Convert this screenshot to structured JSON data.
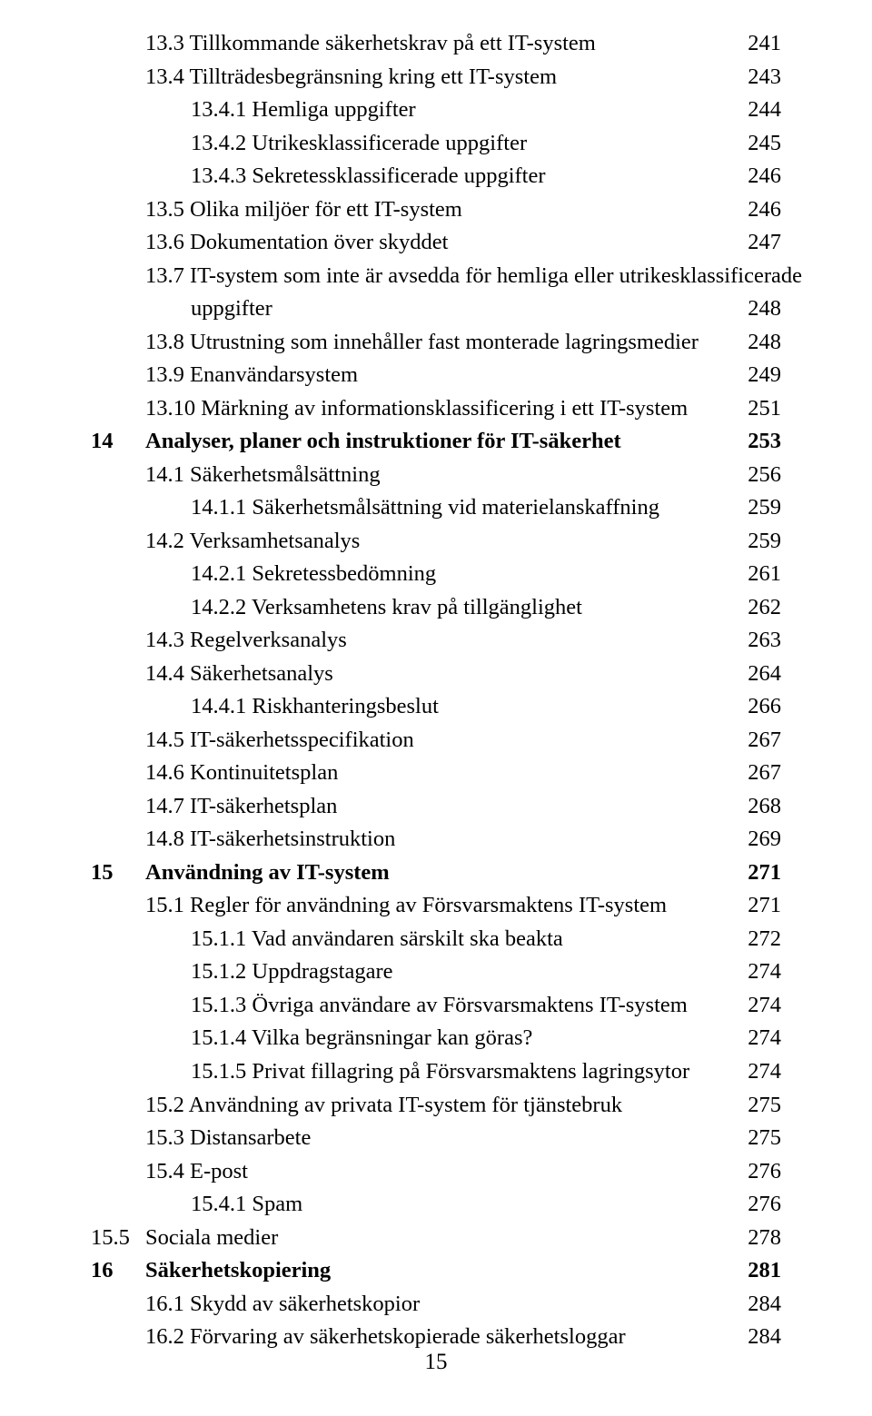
{
  "page_number": "15",
  "toc_entries": [
    {
      "indent": 1,
      "bold": false,
      "label": "13.3 Tillkommande säkerhetskrav på ett IT-system",
      "page": "241"
    },
    {
      "indent": 1,
      "bold": false,
      "label": "13.4 Tillträdesbegränsning kring ett IT-system",
      "page": "243"
    },
    {
      "indent": 2,
      "bold": false,
      "label": "13.4.1 Hemliga uppgifter",
      "page": "244"
    },
    {
      "indent": 2,
      "bold": false,
      "label": "13.4.2 Utrikesklassificerade uppgifter",
      "page": "245"
    },
    {
      "indent": 2,
      "bold": false,
      "label": "13.4.3 Sekretessklassificerade uppgifter",
      "page": "246"
    },
    {
      "indent": 1,
      "bold": false,
      "label": "13.5 Olika miljöer för ett IT-system",
      "page": "246"
    },
    {
      "indent": 1,
      "bold": false,
      "label": "13.6 Dokumentation över skyddet",
      "page": "247"
    },
    {
      "indent": 1,
      "bold": false,
      "label": "13.7 IT-system som inte är avsedda för hemliga eller utrikesklassificerade",
      "page": ""
    },
    {
      "indent": 2,
      "bold": false,
      "label": "uppgifter",
      "page": "248"
    },
    {
      "indent": 1,
      "bold": false,
      "label": "13.8 Utrustning som innehåller fast monterade lagringsmedier",
      "page": "248"
    },
    {
      "indent": 1,
      "bold": false,
      "label": "13.9 Enanvändarsystem",
      "page": "249"
    },
    {
      "indent": 1,
      "bold": false,
      "label": "13.10 Märkning av informationsklassificering i ett IT-system",
      "page": "251"
    },
    {
      "indent": 0,
      "bold": true,
      "chapter": "14",
      "label": "Analyser, planer och instruktioner för IT-säkerhet",
      "page": "253"
    },
    {
      "indent": 1,
      "bold": false,
      "label": "14.1 Säkerhetsmålsättning",
      "page": "256"
    },
    {
      "indent": 2,
      "bold": false,
      "label": "14.1.1 Säkerhetsmålsättning vid materielanskaffning",
      "page": "259"
    },
    {
      "indent": 1,
      "bold": false,
      "label": "14.2 Verksamhetsanalys",
      "page": "259"
    },
    {
      "indent": 2,
      "bold": false,
      "label": "14.2.1 Sekretessbedömning",
      "page": "261"
    },
    {
      "indent": 2,
      "bold": false,
      "label": "14.2.2 Verksamhetens krav på tillgänglighet",
      "page": "262"
    },
    {
      "indent": 1,
      "bold": false,
      "label": "14.3 Regelverksanalys",
      "page": "263"
    },
    {
      "indent": 1,
      "bold": false,
      "label": "14.4 Säkerhetsanalys",
      "page": "264"
    },
    {
      "indent": 2,
      "bold": false,
      "label": "14.4.1 Riskhanteringsbeslut",
      "page": "266"
    },
    {
      "indent": 1,
      "bold": false,
      "label": "14.5 IT-säkerhetsspecifikation",
      "page": "267"
    },
    {
      "indent": 1,
      "bold": false,
      "label": "14.6 Kontinuitetsplan",
      "page": "267"
    },
    {
      "indent": 1,
      "bold": false,
      "label": "14.7 IT-säkerhetsplan",
      "page": "268"
    },
    {
      "indent": 1,
      "bold": false,
      "label": "14.8 IT-säkerhetsinstruktion",
      "page": "269"
    },
    {
      "indent": 0,
      "bold": true,
      "chapter": "15",
      "label": "Användning av IT-system",
      "page": "271"
    },
    {
      "indent": 1,
      "bold": false,
      "label": "15.1 Regler för användning av Försvarsmaktens IT-system",
      "page": "271"
    },
    {
      "indent": 2,
      "bold": false,
      "label": "15.1.1 Vad användaren särskilt ska beakta",
      "page": "272"
    },
    {
      "indent": 2,
      "bold": false,
      "label": "15.1.2 Uppdragstagare",
      "page": "274"
    },
    {
      "indent": 2,
      "bold": false,
      "label": "15.1.3 Övriga användare av Försvarsmaktens IT-system",
      "page": "274"
    },
    {
      "indent": 2,
      "bold": false,
      "label": "15.1.4 Vilka begränsningar kan göras?",
      "page": "274"
    },
    {
      "indent": 2,
      "bold": false,
      "label": "15.1.5 Privat fillagring på Försvarsmaktens lagringsytor",
      "page": "274"
    },
    {
      "indent": 1,
      "bold": false,
      "label": "15.2 Användning av privata IT-system för tjänstebruk",
      "page": "275"
    },
    {
      "indent": 1,
      "bold": false,
      "label": "15.3 Distansarbete",
      "page": "275"
    },
    {
      "indent": 1,
      "bold": false,
      "label": "15.4 E-post",
      "page": "276"
    },
    {
      "indent": 2,
      "bold": false,
      "label": "15.4.1 Spam",
      "page": "276"
    },
    {
      "indent": 0,
      "bold": false,
      "chapter": "15.5",
      "label": "Sociala medier",
      "page": "278"
    },
    {
      "indent": 0,
      "bold": true,
      "chapter": "16",
      "label": "Säkerhetskopiering",
      "page": "281"
    },
    {
      "indent": 1,
      "bold": false,
      "label": "16.1 Skydd av säkerhetskopior",
      "page": "284"
    },
    {
      "indent": 1,
      "bold": false,
      "label": "16.2 Förvaring av säkerhetskopierade säkerhetsloggar",
      "page": "284"
    }
  ]
}
